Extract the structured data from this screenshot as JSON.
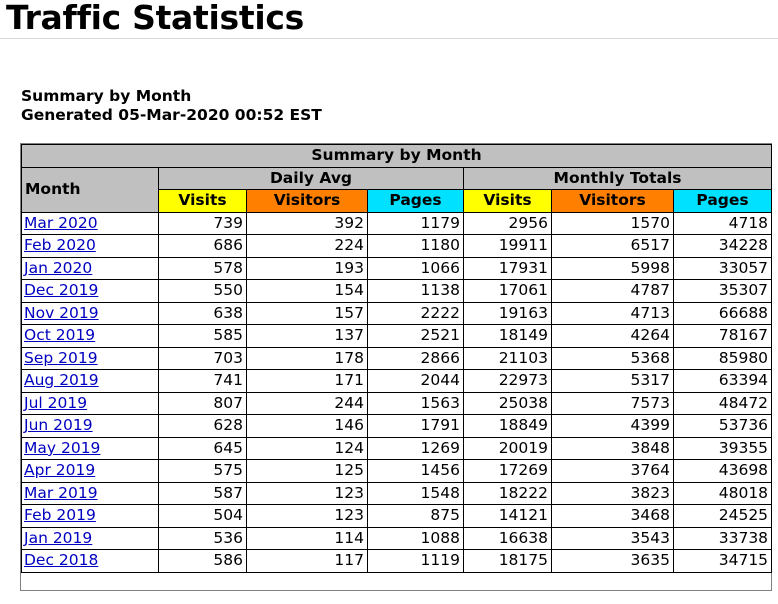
{
  "page": {
    "title": "Traffic Statistics",
    "heading_line1": "Summary by Month",
    "heading_line2": "Generated 05-Mar-2020 00:52 EST"
  },
  "table": {
    "caption": "Summary by Month",
    "month_header": "Month",
    "group_daily": "Daily Avg",
    "group_monthly": "Monthly Totals",
    "columns": {
      "visits": "Visits",
      "visitors": "Visitors",
      "pages": "Pages"
    },
    "colors": {
      "header_grey": "#c0c0c0",
      "visits": "#ffff00",
      "visitors": "#ff8000",
      "pages": "#00e0ff",
      "link": "#0000c0"
    },
    "rows": [
      {
        "month": "Mar 2020",
        "d_visits": "739",
        "d_visitors": "392",
        "d_pages": "1179",
        "m_visits": "2956",
        "m_visitors": "1570",
        "m_pages": "4718"
      },
      {
        "month": "Feb 2020",
        "d_visits": "686",
        "d_visitors": "224",
        "d_pages": "1180",
        "m_visits": "19911",
        "m_visitors": "6517",
        "m_pages": "34228"
      },
      {
        "month": "Jan 2020",
        "d_visits": "578",
        "d_visitors": "193",
        "d_pages": "1066",
        "m_visits": "17931",
        "m_visitors": "5998",
        "m_pages": "33057"
      },
      {
        "month": "Dec 2019",
        "d_visits": "550",
        "d_visitors": "154",
        "d_pages": "1138",
        "m_visits": "17061",
        "m_visitors": "4787",
        "m_pages": "35307"
      },
      {
        "month": "Nov 2019",
        "d_visits": "638",
        "d_visitors": "157",
        "d_pages": "2222",
        "m_visits": "19163",
        "m_visitors": "4713",
        "m_pages": "66688"
      },
      {
        "month": "Oct 2019",
        "d_visits": "585",
        "d_visitors": "137",
        "d_pages": "2521",
        "m_visits": "18149",
        "m_visitors": "4264",
        "m_pages": "78167"
      },
      {
        "month": "Sep 2019",
        "d_visits": "703",
        "d_visitors": "178",
        "d_pages": "2866",
        "m_visits": "21103",
        "m_visitors": "5368",
        "m_pages": "85980"
      },
      {
        "month": "Aug 2019",
        "d_visits": "741",
        "d_visitors": "171",
        "d_pages": "2044",
        "m_visits": "22973",
        "m_visitors": "5317",
        "m_pages": "63394"
      },
      {
        "month": "Jul 2019",
        "d_visits": "807",
        "d_visitors": "244",
        "d_pages": "1563",
        "m_visits": "25038",
        "m_visitors": "7573",
        "m_pages": "48472"
      },
      {
        "month": "Jun 2019",
        "d_visits": "628",
        "d_visitors": "146",
        "d_pages": "1791",
        "m_visits": "18849",
        "m_visitors": "4399",
        "m_pages": "53736"
      },
      {
        "month": "May 2019",
        "d_visits": "645",
        "d_visitors": "124",
        "d_pages": "1269",
        "m_visits": "20019",
        "m_visitors": "3848",
        "m_pages": "39355"
      },
      {
        "month": "Apr 2019",
        "d_visits": "575",
        "d_visitors": "125",
        "d_pages": "1456",
        "m_visits": "17269",
        "m_visitors": "3764",
        "m_pages": "43698"
      },
      {
        "month": "Mar 2019",
        "d_visits": "587",
        "d_visitors": "123",
        "d_pages": "1548",
        "m_visits": "18222",
        "m_visitors": "3823",
        "m_pages": "48018"
      },
      {
        "month": "Feb 2019",
        "d_visits": "504",
        "d_visitors": "123",
        "d_pages": "875",
        "m_visits": "14121",
        "m_visitors": "3468",
        "m_pages": "24525"
      },
      {
        "month": "Jan 2019",
        "d_visits": "536",
        "d_visitors": "114",
        "d_pages": "1088",
        "m_visits": "16638",
        "m_visitors": "3543",
        "m_pages": "33738"
      },
      {
        "month": "Dec 2018",
        "d_visits": "586",
        "d_visitors": "117",
        "d_pages": "1119",
        "m_visits": "18175",
        "m_visitors": "3635",
        "m_pages": "34715"
      }
    ]
  }
}
